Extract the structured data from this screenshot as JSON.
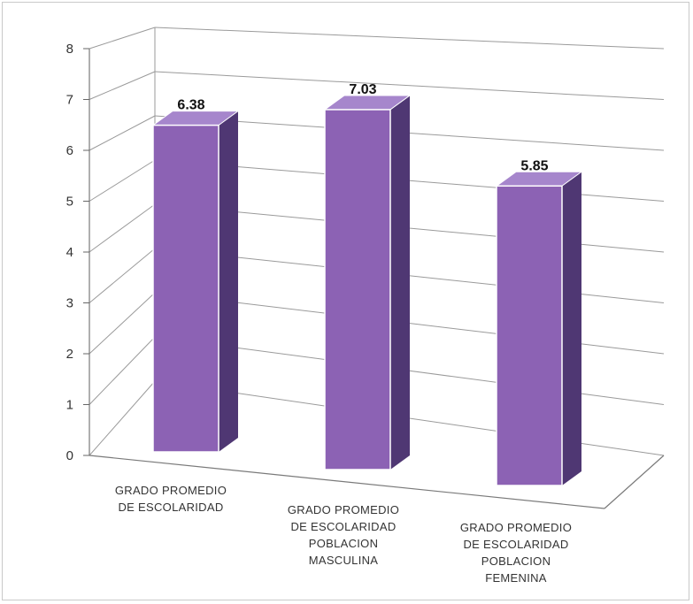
{
  "chart_data": {
    "type": "bar",
    "categories": [
      [
        "GRADO PROMEDIO",
        "DE ESCOLARIDAD"
      ],
      [
        "GRADO PROMEDIO",
        "DE ESCOLARIDAD",
        "POBLACION",
        "MASCULINA"
      ],
      [
        "GRADO PROMEDIO",
        "DE ESCOLARIDAD",
        "POBLACION",
        "FEMENINA"
      ]
    ],
    "values": [
      6.38,
      7.03,
      5.85
    ],
    "data_labels": [
      "6.38",
      "7.03",
      "5.85"
    ],
    "y_ticks": [
      "0",
      "1",
      "2",
      "3",
      "4",
      "5",
      "6",
      "7",
      "8"
    ],
    "ylim": [
      0,
      8
    ],
    "grid": true,
    "legend": "none",
    "style": "3d-column",
    "colors": {
      "bar_front": "#8c62b4",
      "bar_side": "#4f3773",
      "bar_top": "#a686cc",
      "grid": "#9a9a9a"
    }
  }
}
